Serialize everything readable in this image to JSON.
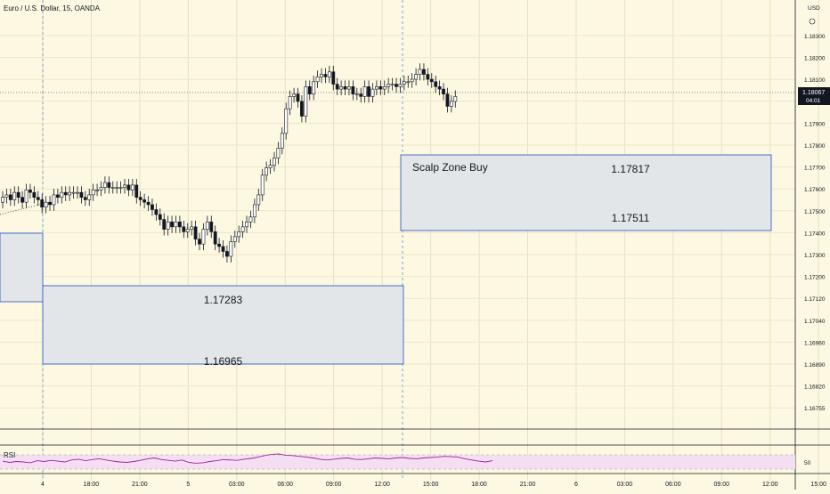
{
  "header": {
    "title": "Euro / U.S. Dollar, 15, OANDA"
  },
  "chart_data": {
    "type": "candlestick",
    "title": "Euro / U.S. Dollar, 15, OANDA",
    "currency": "USD",
    "y_ticks": [
      "1.18300",
      "1.18200",
      "1.18100",
      "1.18000",
      "1.17900",
      "1.17800",
      "1.17700",
      "1.17600",
      "1.17500",
      "1.17400",
      "1.17300",
      "1.17200",
      "1.17120",
      "1.17040",
      "1.16960",
      "1.16890",
      "1.16820",
      "1.16755"
    ],
    "x_ticks": [
      "4",
      "18:00",
      "21:00",
      "5",
      "03:00",
      "06:00",
      "09:00",
      "12:00",
      "15:00",
      "18:00",
      "21:00",
      "6",
      "03:00",
      "06:00",
      "09:00",
      "12:00",
      "15:00"
    ],
    "current_price": {
      "label": "1.18067",
      "countdown": "04:01",
      "value": 1.18067
    },
    "zones": [
      {
        "name": "",
        "top": 1.17483,
        "bottom": 1.17223
      },
      {
        "name": "",
        "top": 1.17283,
        "bottom": 1.16965,
        "top_label": "1.17283",
        "bottom_label": "1.16965"
      },
      {
        "name": "Scalp Zone Buy",
        "top": 1.17817,
        "bottom": 1.17511,
        "top_label": "1.17817",
        "bottom_label": "1.17511"
      }
    ],
    "close_series": [
      1.1766,
      1.1767,
      1.1765,
      1.1768,
      1.1766,
      1.1764,
      1.1769,
      1.1768,
      1.1766,
      1.1765,
      1.1762,
      1.1764,
      1.1763,
      1.1767,
      1.1766,
      1.1768,
      1.1767,
      1.1768,
      1.1768,
      1.1768,
      1.1766,
      1.1765,
      1.1767,
      1.1769,
      1.1769,
      1.177,
      1.1772,
      1.177,
      1.177,
      1.177,
      1.177,
      1.1771,
      1.1769,
      1.1771,
      1.1766,
      1.1765,
      1.1764,
      1.1763,
      1.1761,
      1.1759,
      1.1757,
      1.1753,
      1.1756,
      1.1754,
      1.1756,
      1.1754,
      1.1752,
      1.1753,
      1.1754,
      1.1749,
      1.1747,
      1.1753,
      1.1756,
      1.1752,
      1.1747,
      1.1746,
      1.1744,
      1.1742,
      1.1748,
      1.175,
      1.1752,
      1.1754,
      1.1756,
      1.1758,
      1.1763,
      1.1767,
      1.1775,
      1.1778,
      1.1779,
      1.1782,
      1.1786,
      1.1792,
      1.1802,
      1.1807,
      1.1808,
      1.1805,
      1.1799,
      1.1811,
      1.1808,
      1.1813,
      1.1815,
      1.1816,
      1.1815,
      1.1817,
      1.1812,
      1.181,
      1.1811,
      1.181,
      1.1811,
      1.1808,
      1.1808,
      1.1807,
      1.1811,
      1.1807,
      1.181,
      1.1811,
      1.181,
      1.1811,
      1.1812,
      1.1812,
      1.1811,
      1.1812,
      1.1813,
      1.1813,
      1.1814,
      1.1816,
      1.1818,
      1.1816,
      1.1814,
      1.1813,
      1.1811,
      1.181,
      1.1808,
      1.1803,
      1.1805,
      1.1807
    ],
    "rsi": {
      "label": "RSI",
      "level_label": "50",
      "values": [
        52,
        49,
        51,
        50,
        48,
        53,
        51,
        54,
        52,
        50,
        55,
        57,
        53,
        56,
        58,
        55,
        52,
        50,
        49,
        51,
        54,
        58,
        60,
        56,
        54,
        52,
        55,
        49,
        47,
        48,
        51,
        53,
        56,
        55,
        54,
        57,
        59,
        62,
        66,
        69,
        70,
        67,
        66,
        64,
        62,
        60,
        57,
        55,
        57,
        59,
        60,
        57,
        56,
        58,
        60,
        59,
        58,
        60,
        61,
        59,
        58,
        60,
        61,
        62,
        64,
        63,
        62,
        58,
        55,
        52,
        50,
        53
      ]
    }
  }
}
